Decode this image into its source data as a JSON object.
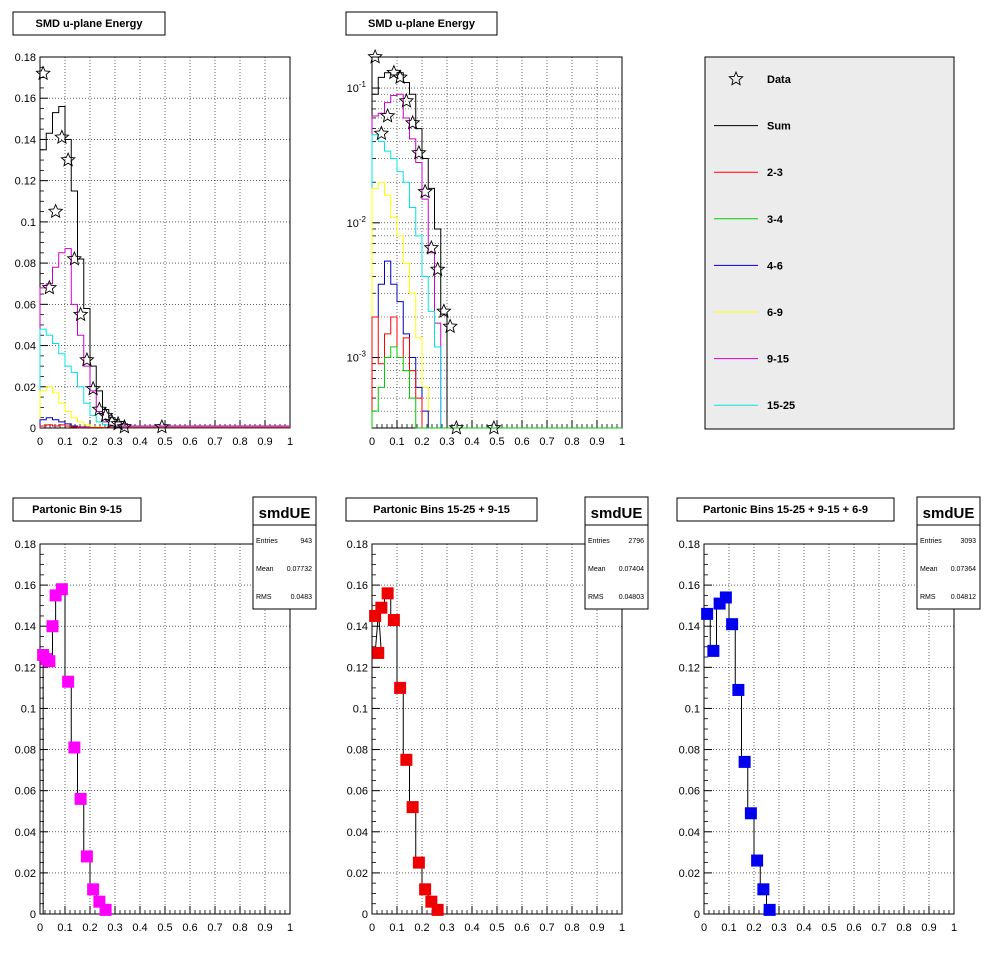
{
  "colors": {
    "sum": "#000000",
    "bin_2_3": "#ff0000",
    "bin_3_4": "#00cc00",
    "bin_4_6": "#0000cc",
    "bin_6_9": "#ffff00",
    "bin_9_15": "#cc00cc",
    "bin_15_25": "#00e5e5",
    "magenta_marker": "#ff00ff",
    "red_marker": "#ee0000",
    "blue_marker": "#0000ee",
    "legend_bg": "#ececec"
  },
  "legend": {
    "items": [
      {
        "label": "Data",
        "kind": "star",
        "color": "#000000"
      },
      {
        "label": "Sum",
        "kind": "line",
        "color": "#000000"
      },
      {
        "label": "2-3",
        "kind": "line",
        "color": "#ff0000"
      },
      {
        "label": "3-4",
        "kind": "line",
        "color": "#00cc00"
      },
      {
        "label": "4-6",
        "kind": "line",
        "color": "#0000cc"
      },
      {
        "label": "6-9",
        "kind": "line",
        "color": "#ffff00"
      },
      {
        "label": "9-15",
        "kind": "line",
        "color": "#cc00cc"
      },
      {
        "label": "15-25",
        "kind": "line",
        "color": "#00e5e5"
      }
    ]
  },
  "chart_data": [
    {
      "type": "line",
      "title": "SMD u-plane Energy",
      "xlim": [
        0,
        1
      ],
      "ylim": [
        0,
        0.18
      ],
      "log_y": false,
      "xticks": [
        "0",
        "0.1",
        "0.2",
        "0.3",
        "0.4",
        "0.5",
        "0.6",
        "0.7",
        "0.8",
        "0.9",
        "1"
      ],
      "yticks": [
        "0",
        "0.02",
        "0.04",
        "0.06",
        "0.08",
        "0.1",
        "0.12",
        "0.14",
        "0.16",
        "0.18"
      ],
      "grid": true,
      "series": [
        {
          "name": "Sum",
          "color": "#000000",
          "style": "step",
          "x": [
            0,
            0.025,
            0.05,
            0.075,
            0.1,
            0.125,
            0.15,
            0.175,
            0.2,
            0.225,
            0.25,
            0.275,
            0.3,
            0.325,
            0.35,
            1.0
          ],
          "y": [
            0.135,
            0.143,
            0.153,
            0.156,
            0.14,
            0.115,
            0.082,
            0.058,
            0.03,
            0.018,
            0.009,
            0.005,
            0.003,
            0.002,
            0.0005,
            0
          ]
        },
        {
          "name": "9-15",
          "color": "#cc00cc",
          "style": "step",
          "x": [
            0,
            0.025,
            0.05,
            0.075,
            0.1,
            0.125,
            0.15,
            0.175,
            0.2,
            0.225,
            0.25,
            0.275,
            1.0
          ],
          "y": [
            0.068,
            0.07,
            0.078,
            0.085,
            0.087,
            0.06,
            0.045,
            0.03,
            0.018,
            0.008,
            0.003,
            0.001,
            0
          ]
        },
        {
          "name": "15-25",
          "color": "#00e5e5",
          "style": "step",
          "x": [
            0,
            0.025,
            0.05,
            0.075,
            0.1,
            0.125,
            0.15,
            0.175,
            0.2,
            0.225,
            0.25,
            0.275,
            1.0
          ],
          "y": [
            0.048,
            0.045,
            0.041,
            0.036,
            0.03,
            0.027,
            0.02,
            0.012,
            0.006,
            0.003,
            0.0015,
            0.0005,
            0
          ]
        },
        {
          "name": "6-9",
          "color": "#ffff00",
          "style": "step",
          "x": [
            0,
            0.025,
            0.05,
            0.075,
            0.1,
            0.125,
            0.15,
            0.175,
            0.2,
            0.25,
            1.0
          ],
          "y": [
            0.018,
            0.02,
            0.017,
            0.012,
            0.008,
            0.005,
            0.003,
            0.0015,
            0.0005,
            0.0002,
            0
          ]
        },
        {
          "name": "4-6",
          "color": "#0000cc",
          "style": "step",
          "x": [
            0,
            0.025,
            0.05,
            0.075,
            0.1,
            0.125,
            0.15,
            0.2,
            1.0
          ],
          "y": [
            0.004,
            0.005,
            0.004,
            0.003,
            0.002,
            0.001,
            0.0005,
            0.0002,
            0
          ]
        },
        {
          "name": "2-3",
          "color": "#ff0000",
          "style": "step",
          "x": [
            0,
            0.025,
            0.05,
            0.075,
            0.1,
            0.125,
            0.15,
            1.0
          ],
          "y": [
            0.001,
            0.0015,
            0.001,
            0.0015,
            0.001,
            0.0005,
            0.0002,
            0
          ]
        },
        {
          "name": "Data",
          "color": "#000000",
          "style": "star",
          "x": [
            0.0125,
            0.0375,
            0.0625,
            0.0875,
            0.1125,
            0.1375,
            0.1625,
            0.1875,
            0.2125,
            0.2375,
            0.2625,
            0.2875,
            0.3125,
            0.3375,
            0.4875
          ],
          "y": [
            0.172,
            0.068,
            0.105,
            0.141,
            0.13,
            0.082,
            0.055,
            0.033,
            0.019,
            0.009,
            0.006,
            0.003,
            0.002,
            0.0005,
            0.0005
          ]
        }
      ]
    },
    {
      "type": "line",
      "title": "SMD u-plane Energy",
      "xlim": [
        0,
        1
      ],
      "ylim": [
        0.0003,
        0.17
      ],
      "log_y": true,
      "xticks": [
        "0",
        "0.1",
        "0.2",
        "0.3",
        "0.4",
        "0.5",
        "0.6",
        "0.7",
        "0.8",
        "0.9",
        "1"
      ],
      "yticks_log": [
        {
          "value": 0.001,
          "label": "10-3"
        },
        {
          "value": 0.01,
          "label": "10-2"
        },
        {
          "value": 0.1,
          "label": "10-1"
        }
      ],
      "grid": true,
      "series": [
        {
          "name": "Sum",
          "color": "#000000",
          "style": "step",
          "x": [
            0,
            0.025,
            0.05,
            0.075,
            0.1,
            0.125,
            0.15,
            0.175,
            0.2,
            0.225,
            0.25,
            0.275,
            0.3,
            1.0
          ],
          "y": [
            0.09,
            0.12,
            0.13,
            0.125,
            0.13,
            0.11,
            0.09,
            0.05,
            0.03,
            0.018,
            0.009,
            0.0021,
            0.0003,
            0.0003
          ]
        },
        {
          "name": "9-15",
          "color": "#cc00cc",
          "style": "step",
          "x": [
            0,
            0.025,
            0.05,
            0.075,
            0.1,
            0.125,
            0.15,
            0.175,
            0.2,
            0.225,
            0.25,
            0.275,
            1.0
          ],
          "y": [
            0.062,
            0.065,
            0.078,
            0.088,
            0.09,
            0.06,
            0.042,
            0.028,
            0.015,
            0.006,
            0.0018,
            0.0003,
            0.0003
          ]
        },
        {
          "name": "15-25",
          "color": "#00e5e5",
          "style": "step",
          "x": [
            0,
            0.025,
            0.05,
            0.075,
            0.1,
            0.125,
            0.15,
            0.175,
            0.2,
            0.225,
            0.25,
            0.275,
            1.0
          ],
          "y": [
            0.045,
            0.04,
            0.034,
            0.03,
            0.024,
            0.02,
            0.013,
            0.008,
            0.004,
            0.0022,
            0.0012,
            0.0003,
            0.0003
          ]
        },
        {
          "name": "6-9",
          "color": "#ffff00",
          "style": "step",
          "x": [
            0,
            0.025,
            0.05,
            0.075,
            0.1,
            0.125,
            0.15,
            0.175,
            0.2,
            0.225,
            1.0
          ],
          "y": [
            0.018,
            0.02,
            0.016,
            0.011,
            0.008,
            0.005,
            0.003,
            0.0014,
            0.0006,
            0.0003,
            0.0003
          ]
        },
        {
          "name": "4-6",
          "color": "#0000cc",
          "style": "step",
          "x": [
            0,
            0.025,
            0.05,
            0.075,
            0.1,
            0.125,
            0.15,
            0.175,
            0.2,
            0.225,
            1.0
          ],
          "y": [
            0.002,
            0.0035,
            0.0052,
            0.0035,
            0.0026,
            0.0015,
            0.001,
            0.0006,
            0.0004,
            0.0003,
            0.0003
          ]
        },
        {
          "name": "2-3",
          "color": "#ff0000",
          "style": "step",
          "x": [
            0,
            0.025,
            0.05,
            0.075,
            0.1,
            0.125,
            0.15,
            0.175,
            0.2,
            1.0
          ],
          "y": [
            0.002,
            0.0009,
            0.0015,
            0.002,
            0.001,
            0.0014,
            0.0008,
            0.0005,
            0.0003,
            0.0003
          ]
        },
        {
          "name": "3-4",
          "color": "#00cc00",
          "style": "step",
          "x": [
            0,
            0.025,
            0.05,
            0.075,
            0.1,
            0.125,
            0.15,
            0.175,
            1.0
          ],
          "y": [
            0.0004,
            0.0006,
            0.001,
            0.0012,
            0.001,
            0.0008,
            0.0005,
            0.0003,
            0.0003
          ]
        },
        {
          "name": "Data",
          "color": "#000000",
          "style": "star",
          "x": [
            0.0125,
            0.0375,
            0.0625,
            0.0875,
            0.1125,
            0.1375,
            0.1625,
            0.1875,
            0.2125,
            0.2375,
            0.2625,
            0.2875,
            0.3125,
            0.3375,
            0.4875
          ],
          "y": [
            0.17,
            0.046,
            0.062,
            0.13,
            0.12,
            0.08,
            0.055,
            0.033,
            0.017,
            0.0065,
            0.0045,
            0.0022,
            0.0017,
            0.0003,
            0.0003
          ]
        }
      ]
    },
    {
      "type": "line",
      "title": "Partonic Bin 9-15",
      "xlim": [
        0,
        1
      ],
      "ylim": [
        0,
        0.18
      ],
      "log_y": false,
      "xticks": [
        "0",
        "0.1",
        "0.2",
        "0.3",
        "0.4",
        "0.5",
        "0.6",
        "0.7",
        "0.8",
        "0.9",
        "1"
      ],
      "yticks": [
        "0",
        "0.02",
        "0.04",
        "0.06",
        "0.08",
        "0.1",
        "0.12",
        "0.14",
        "0.16",
        "0.18"
      ],
      "grid": true,
      "stats": {
        "name": "smdUE",
        "entries": "943",
        "mean": "0.07732",
        "rms": "0.0483",
        "entries_label": "Entries",
        "mean_label": "Mean",
        "rms_label": "RMS"
      },
      "marker_color": "#ff00ff",
      "series": [
        {
          "style": "step_markers",
          "x": [
            0.0125,
            0.025,
            0.0375,
            0.05,
            0.0625,
            0.075,
            0.0875,
            0.1,
            0.1125,
            0.125,
            0.1375,
            0.15,
            0.1625,
            0.175,
            0.1875,
            0.2,
            0.2125,
            0.225,
            0.2375,
            0.25,
            0.2625,
            0.275
          ],
          "y": [
            0.126,
            0.124,
            0.123,
            0.14,
            0.155,
            0.158,
            0.158,
            0.113,
            0.113,
            0.081,
            0.081,
            0.056,
            0.056,
            0.028,
            0.028,
            0.012,
            0.012,
            0.006,
            0.006,
            0.003,
            0.002,
            0.002
          ]
        }
      ],
      "markers_x": [
        0.0125,
        0.025,
        0.0375,
        0.05,
        0.0625,
        0.0875,
        0.1125,
        0.1375,
        0.1625,
        0.1875,
        0.2125,
        0.2375,
        0.2625
      ],
      "markers_y": [
        0.126,
        0.124,
        0.123,
        0.14,
        0.155,
        0.158,
        0.113,
        0.081,
        0.056,
        0.028,
        0.012,
        0.006,
        0.002
      ]
    },
    {
      "type": "line",
      "title": "Partonic Bins 15-25 + 9-15",
      "xlim": [
        0,
        1
      ],
      "ylim": [
        0,
        0.18
      ],
      "log_y": false,
      "xticks": [
        "0",
        "0.1",
        "0.2",
        "0.3",
        "0.4",
        "0.5",
        "0.6",
        "0.7",
        "0.8",
        "0.9",
        "1"
      ],
      "yticks": [
        "0",
        "0.02",
        "0.04",
        "0.06",
        "0.08",
        "0.1",
        "0.12",
        "0.14",
        "0.16",
        "0.18"
      ],
      "grid": true,
      "stats": {
        "name": "smdUE",
        "entries": "2796",
        "mean": "0.07404",
        "rms": "0.04803",
        "entries_label": "Entries",
        "mean_label": "Mean",
        "rms_label": "RMS"
      },
      "marker_color": "#ee0000",
      "markers_x": [
        0.0125,
        0.025,
        0.0375,
        0.0625,
        0.0875,
        0.1125,
        0.1375,
        0.1625,
        0.1875,
        0.2125,
        0.2375,
        0.2625
      ],
      "markers_y": [
        0.145,
        0.127,
        0.149,
        0.156,
        0.143,
        0.11,
        0.075,
        0.052,
        0.025,
        0.012,
        0.006,
        0.002
      ]
    },
    {
      "type": "line",
      "title": "Partonic Bins 15-25 + 9-15 + 6-9",
      "xlim": [
        0,
        1
      ],
      "ylim": [
        0,
        0.18
      ],
      "log_y": false,
      "xticks": [
        "0",
        "0.1",
        "0.2",
        "0.3",
        "0.4",
        "0.5",
        "0.6",
        "0.7",
        "0.8",
        "0.9",
        "1"
      ],
      "yticks": [
        "0",
        "0.02",
        "0.04",
        "0.06",
        "0.08",
        "0.1",
        "0.12",
        "0.14",
        "0.16",
        "0.18"
      ],
      "grid": true,
      "stats": {
        "name": "smdUE",
        "entries": "3093",
        "mean": "0.07364",
        "rms": "0.04812",
        "entries_label": "Entries",
        "mean_label": "Mean",
        "rms_label": "RMS"
      },
      "marker_color": "#0000ee",
      "markers_x": [
        0.0125,
        0.0375,
        0.0625,
        0.0875,
        0.1125,
        0.1375,
        0.1625,
        0.1875,
        0.2125,
        0.2375,
        0.2625
      ],
      "markers_y": [
        0.146,
        0.128,
        0.151,
        0.154,
        0.141,
        0.109,
        0.074,
        0.049,
        0.026,
        0.012,
        0.002
      ]
    }
  ]
}
